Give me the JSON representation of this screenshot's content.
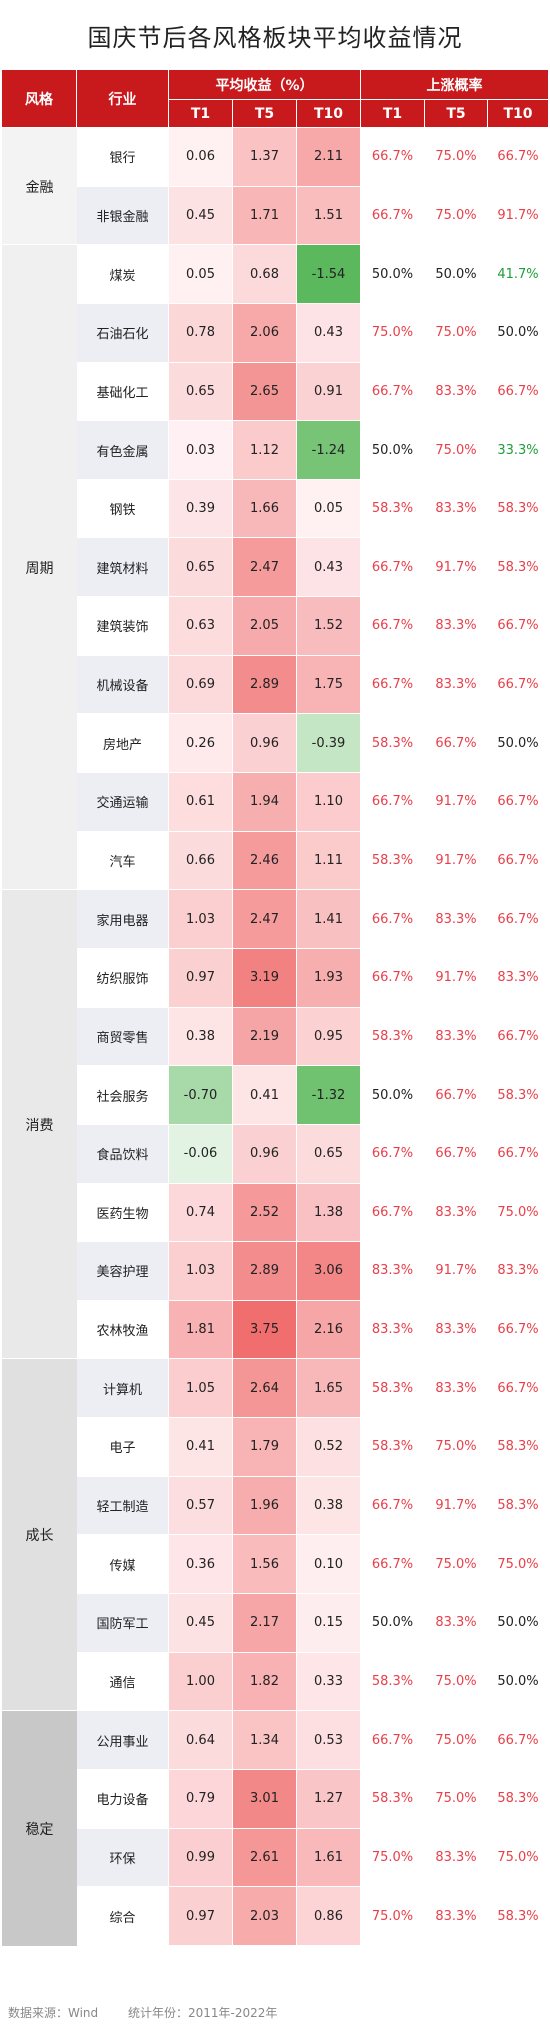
{
  "title": "国庆节后各风格板块平均收益情况",
  "headers": {
    "style": "风格",
    "industry": "行业",
    "avg_return": "平均收益（%）",
    "rise_prob": "上涨概率",
    "t1": "T1",
    "t5": "T5",
    "t10": "T10"
  },
  "colors": {
    "header_bg": "#c8191d",
    "positive_high": "#f06e6e",
    "negative_high": "#5cb85c",
    "prob_up_text": "#e8404a",
    "prob_down_text": "#1f9d3b"
  },
  "chart_data": {
    "type": "table",
    "title": "国庆节后各风格板块平均收益情况",
    "groups": [
      {
        "style": "金融",
        "rows": [
          {
            "industry": "银行",
            "t1": "0.06",
            "t5": "1.37",
            "t10": "2.11",
            "p1": "66.7%",
            "p5": "75.0%",
            "p10": "66.7%"
          },
          {
            "industry": "非银金融",
            "t1": "0.45",
            "t5": "1.71",
            "t10": "1.51",
            "p1": "66.7%",
            "p5": "75.0%",
            "p10": "91.7%"
          }
        ]
      },
      {
        "style": "周期",
        "rows": [
          {
            "industry": "煤炭",
            "t1": "0.05",
            "t5": "0.68",
            "t10": "-1.54",
            "p1": "50.0%",
            "p5": "50.0%",
            "p10": "41.7%"
          },
          {
            "industry": "石油石化",
            "t1": "0.78",
            "t5": "2.06",
            "t10": "0.43",
            "p1": "75.0%",
            "p5": "75.0%",
            "p10": "50.0%"
          },
          {
            "industry": "基础化工",
            "t1": "0.65",
            "t5": "2.65",
            "t10": "0.91",
            "p1": "66.7%",
            "p5": "83.3%",
            "p10": "66.7%"
          },
          {
            "industry": "有色金属",
            "t1": "0.03",
            "t5": "1.12",
            "t10": "-1.24",
            "p1": "50.0%",
            "p5": "75.0%",
            "p10": "33.3%"
          },
          {
            "industry": "钢铁",
            "t1": "0.39",
            "t5": "1.66",
            "t10": "0.05",
            "p1": "58.3%",
            "p5": "83.3%",
            "p10": "58.3%"
          },
          {
            "industry": "建筑材料",
            "t1": "0.65",
            "t5": "2.47",
            "t10": "0.43",
            "p1": "66.7%",
            "p5": "91.7%",
            "p10": "58.3%"
          },
          {
            "industry": "建筑装饰",
            "t1": "0.63",
            "t5": "2.05",
            "t10": "1.52",
            "p1": "66.7%",
            "p5": "83.3%",
            "p10": "66.7%"
          },
          {
            "industry": "机械设备",
            "t1": "0.69",
            "t5": "2.89",
            "t10": "1.75",
            "p1": "66.7%",
            "p5": "83.3%",
            "p10": "66.7%"
          },
          {
            "industry": "房地产",
            "t1": "0.26",
            "t5": "0.96",
            "t10": "-0.39",
            "p1": "58.3%",
            "p5": "66.7%",
            "p10": "50.0%"
          },
          {
            "industry": "交通运输",
            "t1": "0.61",
            "t5": "1.94",
            "t10": "1.10",
            "p1": "66.7%",
            "p5": "91.7%",
            "p10": "66.7%"
          },
          {
            "industry": "汽车",
            "t1": "0.66",
            "t5": "2.46",
            "t10": "1.11",
            "p1": "58.3%",
            "p5": "91.7%",
            "p10": "66.7%"
          }
        ]
      },
      {
        "style": "消费",
        "rows": [
          {
            "industry": "家用电器",
            "t1": "1.03",
            "t5": "2.47",
            "t10": "1.41",
            "p1": "66.7%",
            "p5": "83.3%",
            "p10": "66.7%"
          },
          {
            "industry": "纺织服饰",
            "t1": "0.97",
            "t5": "3.19",
            "t10": "1.93",
            "p1": "66.7%",
            "p5": "91.7%",
            "p10": "83.3%"
          },
          {
            "industry": "商贸零售",
            "t1": "0.38",
            "t5": "2.19",
            "t10": "0.95",
            "p1": "58.3%",
            "p5": "83.3%",
            "p10": "66.7%"
          },
          {
            "industry": "社会服务",
            "t1": "-0.70",
            "t5": "0.41",
            "t10": "-1.32",
            "p1": "50.0%",
            "p5": "66.7%",
            "p10": "58.3%"
          },
          {
            "industry": "食品饮料",
            "t1": "-0.06",
            "t5": "0.96",
            "t10": "0.65",
            "p1": "66.7%",
            "p5": "66.7%",
            "p10": "66.7%"
          },
          {
            "industry": "医药生物",
            "t1": "0.74",
            "t5": "2.52",
            "t10": "1.38",
            "p1": "66.7%",
            "p5": "83.3%",
            "p10": "75.0%"
          },
          {
            "industry": "美容护理",
            "t1": "1.03",
            "t5": "2.89",
            "t10": "3.06",
            "p1": "83.3%",
            "p5": "91.7%",
            "p10": "83.3%"
          },
          {
            "industry": "农林牧渔",
            "t1": "1.81",
            "t5": "3.75",
            "t10": "2.16",
            "p1": "83.3%",
            "p5": "83.3%",
            "p10": "66.7%"
          }
        ]
      },
      {
        "style": "成长",
        "rows": [
          {
            "industry": "计算机",
            "t1": "1.05",
            "t5": "2.64",
            "t10": "1.65",
            "p1": "58.3%",
            "p5": "83.3%",
            "p10": "66.7%"
          },
          {
            "industry": "电子",
            "t1": "0.41",
            "t5": "1.79",
            "t10": "0.52",
            "p1": "58.3%",
            "p5": "75.0%",
            "p10": "58.3%"
          },
          {
            "industry": "轻工制造",
            "t1": "0.57",
            "t5": "1.96",
            "t10": "0.38",
            "p1": "66.7%",
            "p5": "91.7%",
            "p10": "58.3%"
          },
          {
            "industry": "传媒",
            "t1": "0.36",
            "t5": "1.56",
            "t10": "0.10",
            "p1": "66.7%",
            "p5": "75.0%",
            "p10": "75.0%"
          },
          {
            "industry": "国防军工",
            "t1": "0.45",
            "t5": "2.17",
            "t10": "0.15",
            "p1": "50.0%",
            "p5": "83.3%",
            "p10": "50.0%"
          },
          {
            "industry": "通信",
            "t1": "1.00",
            "t5": "1.82",
            "t10": "0.33",
            "p1": "58.3%",
            "p5": "75.0%",
            "p10": "50.0%"
          }
        ]
      },
      {
        "style": "稳定",
        "rows": [
          {
            "industry": "公用事业",
            "t1": "0.64",
            "t5": "1.34",
            "t10": "0.53",
            "p1": "66.7%",
            "p5": "75.0%",
            "p10": "66.7%"
          },
          {
            "industry": "电力设备",
            "t1": "0.79",
            "t5": "3.01",
            "t10": "1.27",
            "p1": "58.3%",
            "p5": "75.0%",
            "p10": "58.3%"
          },
          {
            "industry": "环保",
            "t1": "0.99",
            "t5": "2.61",
            "t10": "1.61",
            "p1": "75.0%",
            "p5": "83.3%",
            "p10": "75.0%"
          },
          {
            "industry": "综合",
            "t1": "0.97",
            "t5": "2.03",
            "t10": "0.86",
            "p1": "75.0%",
            "p5": "83.3%",
            "p10": "58.3%"
          }
        ]
      }
    ]
  },
  "source": {
    "data_source": "数据来源：Wind",
    "period": "统计年份：2011年-2022年"
  }
}
